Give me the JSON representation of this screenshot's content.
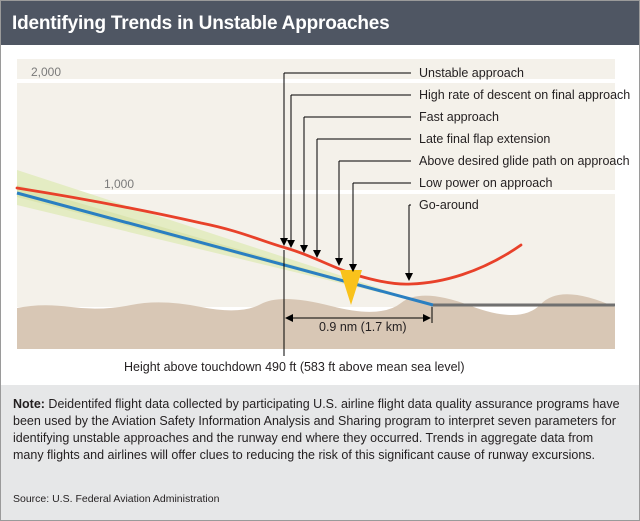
{
  "header": {
    "title": "Identifying Trends in Unstable Approaches"
  },
  "altitude_labels": [
    "2,000",
    "1,000"
  ],
  "callouts": [
    "Unstable approach",
    "High rate of descent on final approach",
    "Fast approach",
    "Late final flap extension",
    "Above desired glide path on approach",
    "Low power on approach",
    "Go-around"
  ],
  "distance_label": "0.9 nm (1.7 km)",
  "height_label": "Height above touchdown 490 ft (583 ft above mean sea level)",
  "note": {
    "label": "Note:",
    "text": " Deidentifed flight data collected by participating U.S. airline flight data quality assurance programs have been used by the Aviation Safety Information Analysis and Sharing program to interpret seven parameters for identifying unstable approaches and the runway end where they occurred. Trends in aggregate data from many flights and airlines will offer clues to reducing the risk of this significant cause of runway excursions."
  },
  "source": "Source: U.S. Federal Aviation Administration",
  "colors": {
    "header_bg": "#4f5663",
    "sky": "#f4f1ea",
    "ground": "#d8c7b5",
    "glide_band": "#e2ebbf",
    "flight_path": "#e8412a",
    "glide_path": "#2a7fc1",
    "marker": "#f9c21b",
    "note_bg": "#e6e7e8"
  }
}
